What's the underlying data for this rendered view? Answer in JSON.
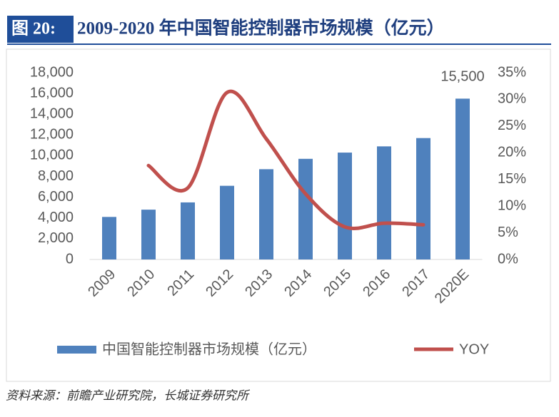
{
  "chart_data": {
    "type": "bar_line",
    "figure_label": "图 20:",
    "title": "2009-2020 年中国智能控制器市场规模（亿元）",
    "source": "资料来源：前瞻产业研究院，长城证券研究所",
    "categories": [
      "2009",
      "2010",
      "2011",
      "2012",
      "2013",
      "2014",
      "2015",
      "2016",
      "2017",
      "2020E"
    ],
    "series": [
      {
        "name": "中国智能控制器市场规模（亿元）",
        "type": "bar",
        "color": "#4f81bd",
        "values": [
          4100,
          4800,
          5500,
          7100,
          8700,
          9700,
          10300,
          10900,
          11700,
          15500
        ],
        "value_labels": [
          null,
          null,
          null,
          null,
          null,
          null,
          null,
          null,
          null,
          "15,500"
        ]
      },
      {
        "name": "YOY",
        "type": "line",
        "axis": "y2",
        "color": "#c0504d",
        "values": [
          null,
          17.6,
          13.4,
          31.3,
          22.6,
          12.3,
          6.1,
          6.8,
          6.5,
          null
        ]
      }
    ],
    "ylim": [
      0,
      18000
    ],
    "yticks": [
      0,
      {
        "value": 2000,
        "label": "2,000"
      },
      {
        "value": 4000,
        "label": "4,000"
      },
      {
        "value": 6000,
        "label": "6,000"
      },
      {
        "value": 8000,
        "label": "8,000"
      },
      {
        "value": 10000,
        "label": "10,000"
      },
      {
        "value": 12000,
        "label": "12,000"
      },
      {
        "value": 14000,
        "label": "14,000"
      },
      {
        "value": 16000,
        "label": "16,000"
      },
      {
        "value": 18000,
        "label": "18,000"
      }
    ],
    "y2lim": [
      0,
      35
    ],
    "y2ticks": [
      {
        "value": 0,
        "label": "0%"
      },
      {
        "value": 5,
        "label": "5%"
      },
      {
        "value": 10,
        "label": "10%"
      },
      {
        "value": 15,
        "label": "15%"
      },
      {
        "value": 20,
        "label": "20%"
      },
      {
        "value": 25,
        "label": "25%"
      },
      {
        "value": 30,
        "label": "30%"
      },
      {
        "value": 35,
        "label": "35%"
      }
    ],
    "grid": false,
    "legend": "bottom"
  }
}
